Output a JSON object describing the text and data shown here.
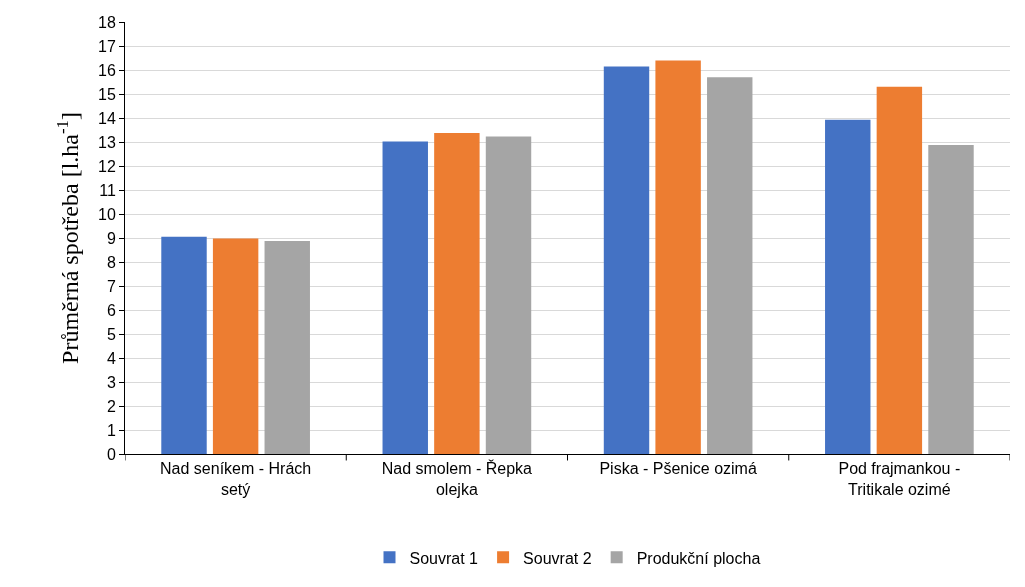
{
  "chart_data": {
    "type": "bar",
    "ylabel": "Průměrná spotřeba [l.ha$^{-1}$]",
    "categories": [
      "Nad seníkem - Hrách setý",
      "Nad smolem - Řepka olejka",
      "Piska - Pšenice ozimá",
      "Pod frajmankou - Tritikale ozimé"
    ],
    "series": [
      {
        "name": "Souvrat 1",
        "color": "#4472c4",
        "values": [
          9.05,
          13.02,
          16.15,
          13.93
        ]
      },
      {
        "name": "Souvrat 2",
        "color": "#ed7d31",
        "values": [
          8.98,
          13.37,
          16.4,
          15.3
        ]
      },
      {
        "name": "Produkční plocha",
        "color": "#a5a5a5",
        "values": [
          8.88,
          13.23,
          15.7,
          12.87
        ]
      }
    ],
    "ylim": [
      0,
      18
    ],
    "yticks": [
      0,
      1,
      2,
      3,
      4,
      5,
      6,
      7,
      8,
      9,
      10,
      11,
      12,
      13,
      14,
      15,
      16,
      17,
      18
    ],
    "grid": "y",
    "legend": "bottom"
  }
}
